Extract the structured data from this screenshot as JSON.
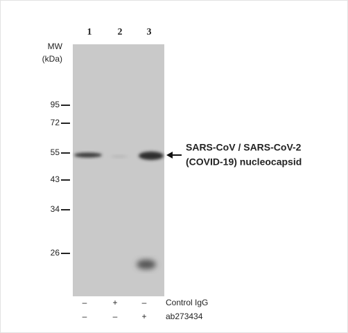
{
  "lanes": [
    "1",
    "2",
    "3"
  ],
  "mw_label": {
    "line1": "MW",
    "line2": "(kDa)"
  },
  "markers": [
    95,
    72,
    55,
    43,
    34,
    26
  ],
  "annotation": {
    "line1": "SARS-CoV / SARS-CoV-2",
    "line2": "(COVID-19)  nucleocapsid"
  },
  "conditions": [
    {
      "label": "Control IgG",
      "signs": [
        "–",
        "+",
        "–"
      ]
    },
    {
      "label": "ab273434",
      "signs": [
        "–",
        "–",
        "+"
      ]
    }
  ]
}
